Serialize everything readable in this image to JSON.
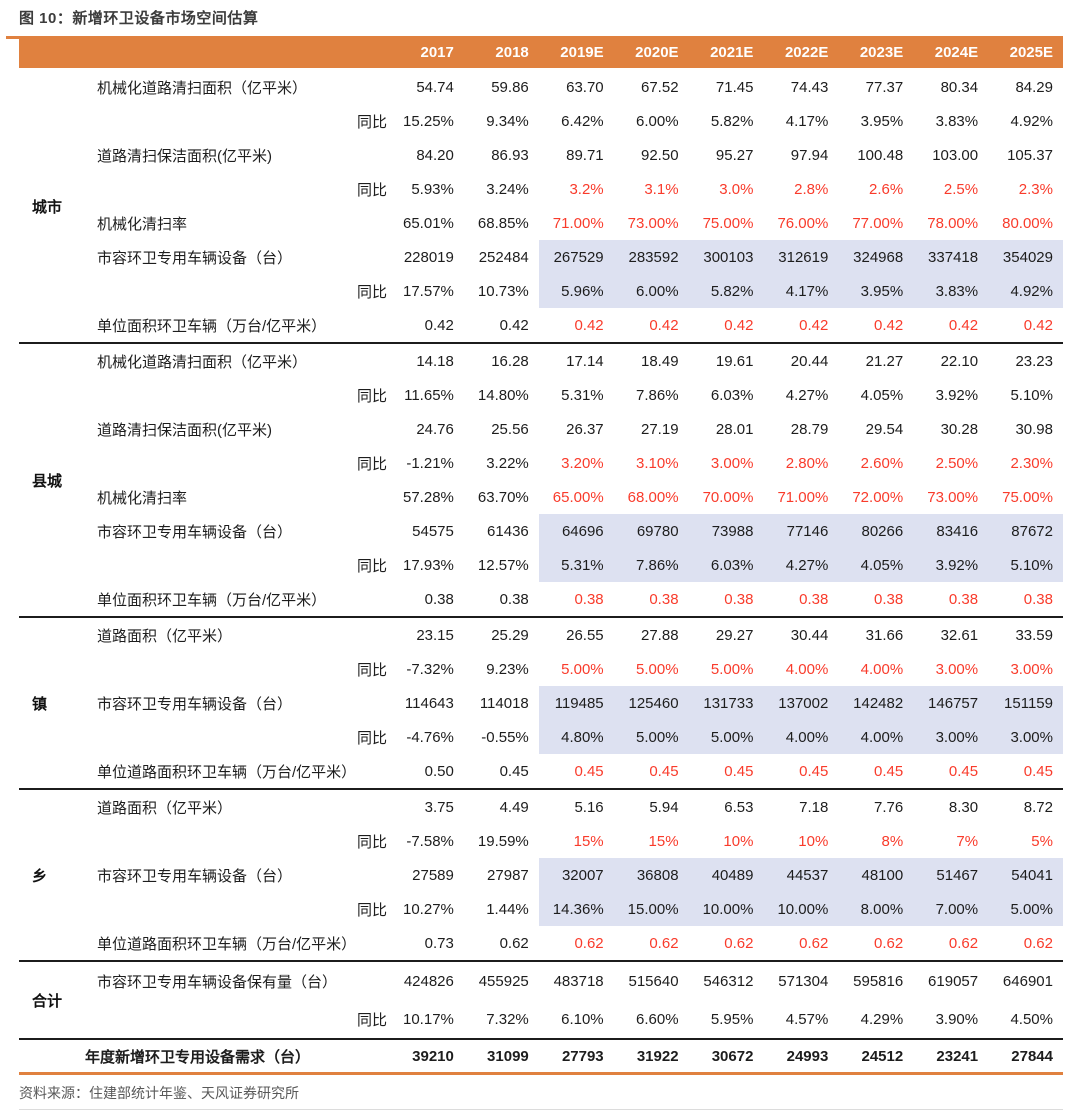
{
  "title": "图 10：新增环卫设备市场空间估算",
  "source": "资料来源：住建部统计年鉴、天风证券研究所",
  "colors": {
    "accent": "#E0813F",
    "highlight": "#DDE1F1",
    "red": "#F93B2B"
  },
  "table": {
    "year_headers": [
      "2017",
      "2018",
      "2019E",
      "2020E",
      "2021E",
      "2022E",
      "2023E",
      "2024E",
      "2025E"
    ],
    "groups": [
      {
        "key": "city",
        "name": "城市",
        "rows": [
          {
            "type": "item",
            "label": "机械化道路清扫面积（亿平米）",
            "values": [
              "54.74",
              "59.86",
              "63.70",
              "67.52",
              "71.45",
              "74.43",
              "77.37",
              "80.34",
              "84.29"
            ]
          },
          {
            "type": "yoy",
            "label": "同比",
            "values": [
              "15.25%",
              "9.34%",
              "6.42%",
              "6.00%",
              "5.82%",
              "4.17%",
              "3.95%",
              "3.83%",
              "4.92%"
            ]
          },
          {
            "type": "item",
            "label": "道路清扫保洁面积(亿平米)",
            "values": [
              "84.20",
              "86.93",
              "89.71",
              "92.50",
              "95.27",
              "97.94",
              "100.48",
              "103.00",
              "105.37"
            ]
          },
          {
            "type": "yoy",
            "label": "同比",
            "values": [
              "5.93%",
              "3.24%",
              "3.2%",
              "3.1%",
              "3.0%",
              "2.8%",
              "2.6%",
              "2.5%",
              "2.3%"
            ],
            "red_from": 2
          },
          {
            "type": "item",
            "label": "机械化清扫率",
            "values": [
              "65.01%",
              "68.85%",
              "71.00%",
              "73.00%",
              "75.00%",
              "76.00%",
              "77.00%",
              "78.00%",
              "80.00%"
            ],
            "red_from": 2
          },
          {
            "type": "item",
            "label": "市容环卫专用车辆设备（台）",
            "values": [
              "228019",
              "252484",
              "267529",
              "283592",
              "300103",
              "312619",
              "324968",
              "337418",
              "354029"
            ],
            "hl_from": 2
          },
          {
            "type": "yoy",
            "label": "同比",
            "values": [
              "17.57%",
              "10.73%",
              "5.96%",
              "6.00%",
              "5.82%",
              "4.17%",
              "3.95%",
              "3.83%",
              "4.92%"
            ],
            "hl_from": 2
          },
          {
            "type": "item",
            "label": "单位面积环卫车辆（万台/亿平米）",
            "values": [
              "0.42",
              "0.42",
              "0.42",
              "0.42",
              "0.42",
              "0.42",
              "0.42",
              "0.42",
              "0.42"
            ],
            "red_from": 2
          }
        ]
      },
      {
        "key": "county",
        "name": "县城",
        "rows": [
          {
            "type": "item",
            "label": "机械化道路清扫面积（亿平米）",
            "values": [
              "14.18",
              "16.28",
              "17.14",
              "18.49",
              "19.61",
              "20.44",
              "21.27",
              "22.10",
              "23.23"
            ]
          },
          {
            "type": "yoy",
            "label": "同比",
            "values": [
              "11.65%",
              "14.80%",
              "5.31%",
              "7.86%",
              "6.03%",
              "4.27%",
              "4.05%",
              "3.92%",
              "5.10%"
            ]
          },
          {
            "type": "item",
            "label": "道路清扫保洁面积(亿平米)",
            "values": [
              "24.76",
              "25.56",
              "26.37",
              "27.19",
              "28.01",
              "28.79",
              "29.54",
              "30.28",
              "30.98"
            ]
          },
          {
            "type": "yoy",
            "label": "同比",
            "values": [
              "-1.21%",
              "3.22%",
              "3.20%",
              "3.10%",
              "3.00%",
              "2.80%",
              "2.60%",
              "2.50%",
              "2.30%"
            ],
            "red_from": 2
          },
          {
            "type": "item",
            "label": "机械化清扫率",
            "values": [
              "57.28%",
              "63.70%",
              "65.00%",
              "68.00%",
              "70.00%",
              "71.00%",
              "72.00%",
              "73.00%",
              "75.00%"
            ],
            "red_from": 2
          },
          {
            "type": "item",
            "label": "市容环卫专用车辆设备（台）",
            "values": [
              "54575",
              "61436",
              "64696",
              "69780",
              "73988",
              "77146",
              "80266",
              "83416",
              "87672"
            ],
            "hl_from": 2
          },
          {
            "type": "yoy",
            "label": "同比",
            "values": [
              "17.93%",
              "12.57%",
              "5.31%",
              "7.86%",
              "6.03%",
              "4.27%",
              "4.05%",
              "3.92%",
              "5.10%"
            ],
            "hl_from": 2
          },
          {
            "type": "item",
            "label": "单位面积环卫车辆（万台/亿平米）",
            "values": [
              "0.38",
              "0.38",
              "0.38",
              "0.38",
              "0.38",
              "0.38",
              "0.38",
              "0.38",
              "0.38"
            ],
            "red_from": 2
          }
        ]
      },
      {
        "key": "town",
        "name": "镇",
        "rows": [
          {
            "type": "item",
            "label": "道路面积（亿平米）",
            "values": [
              "23.15",
              "25.29",
              "26.55",
              "27.88",
              "29.27",
              "30.44",
              "31.66",
              "32.61",
              "33.59"
            ]
          },
          {
            "type": "yoy",
            "label": "同比",
            "values": [
              "-7.32%",
              "9.23%",
              "5.00%",
              "5.00%",
              "5.00%",
              "4.00%",
              "4.00%",
              "3.00%",
              "3.00%"
            ],
            "red_from": 2
          },
          {
            "type": "item",
            "label": "市容环卫专用车辆设备（台）",
            "values": [
              "114643",
              "114018",
              "119485",
              "125460",
              "131733",
              "137002",
              "142482",
              "146757",
              "151159"
            ],
            "hl_from": 2
          },
          {
            "type": "yoy",
            "label": "同比",
            "values": [
              "-4.76%",
              "-0.55%",
              "4.80%",
              "5.00%",
              "5.00%",
              "4.00%",
              "4.00%",
              "3.00%",
              "3.00%"
            ],
            "hl_from": 2
          },
          {
            "type": "item",
            "label": "单位道路面积环卫车辆（万台/亿平米）",
            "values": [
              "0.50",
              "0.45",
              "0.45",
              "0.45",
              "0.45",
              "0.45",
              "0.45",
              "0.45",
              "0.45"
            ],
            "red_from": 2
          }
        ]
      },
      {
        "key": "township",
        "name": "乡",
        "rows": [
          {
            "type": "item",
            "label": "道路面积（亿平米）",
            "values": [
              "3.75",
              "4.49",
              "5.16",
              "5.94",
              "6.53",
              "7.18",
              "7.76",
              "8.30",
              "8.72"
            ]
          },
          {
            "type": "yoy",
            "label": "同比",
            "values": [
              "-7.58%",
              "19.59%",
              "15%",
              "15%",
              "10%",
              "10%",
              "8%",
              "7%",
              "5%"
            ],
            "red_from": 2
          },
          {
            "type": "item",
            "label": "市容环卫专用车辆设备（台）",
            "values": [
              "27589",
              "27987",
              "32007",
              "36808",
              "40489",
              "44537",
              "48100",
              "51467",
              "54041"
            ],
            "hl_from": 2
          },
          {
            "type": "yoy",
            "label": "同比",
            "values": [
              "10.27%",
              "1.44%",
              "14.36%",
              "15.00%",
              "10.00%",
              "10.00%",
              "8.00%",
              "7.00%",
              "5.00%"
            ],
            "hl_from": 2
          },
          {
            "type": "item",
            "label": "单位道路面积环卫车辆（万台/亿平米）",
            "values": [
              "0.73",
              "0.62",
              "0.62",
              "0.62",
              "0.62",
              "0.62",
              "0.62",
              "0.62",
              "0.62"
            ],
            "red_from": 2
          }
        ]
      },
      {
        "key": "total",
        "name": "合计",
        "rows": [
          {
            "type": "item",
            "label": "市容环卫专用车辆设备保有量（台）",
            "values": [
              "424826",
              "455925",
              "483718",
              "515640",
              "546312",
              "571304",
              "595816",
              "619057",
              "646901"
            ]
          },
          {
            "type": "yoy",
            "label": "同比",
            "values": [
              "10.17%",
              "7.32%",
              "6.10%",
              "6.60%",
              "5.95%",
              "4.57%",
              "4.29%",
              "3.90%",
              "4.50%"
            ]
          }
        ]
      }
    ],
    "final_row": {
      "label": "年度新增环卫专用设备需求（台）",
      "values": [
        "39210",
        "31099",
        "27793",
        "31922",
        "30672",
        "24993",
        "24512",
        "23241",
        "27844"
      ]
    }
  }
}
